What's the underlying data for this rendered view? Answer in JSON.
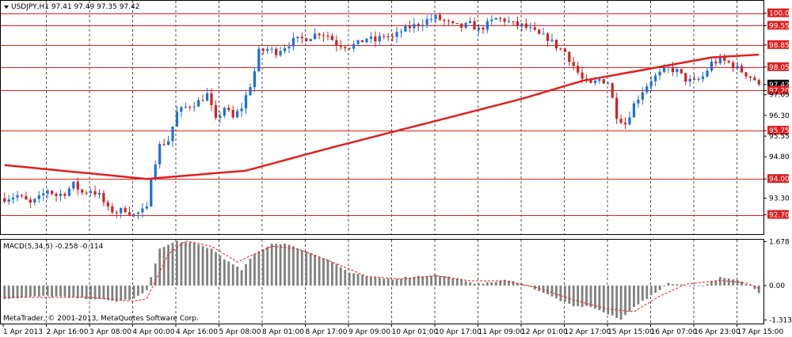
{
  "header": {
    "symbol_line": "USDJPY,H1  97.41 97.49 97.35 97.42"
  },
  "macd": {
    "label": "MACD(5,34,5) -0.258 -0.114",
    "ticks": [
      "1.678",
      "0.00",
      "-1.313"
    ]
  },
  "footer": {
    "copyright": "MetaTrader, © 2001-2013, MetaQuotes Software Corp."
  },
  "colors": {
    "up": "#1E6FD9",
    "down": "#D62020",
    "ma": "#E02020",
    "level": "#E02020",
    "macd_hist": "#808080",
    "signal": "#E02020"
  },
  "chart_data": [
    {
      "type": "candlestick",
      "title": "USDJPY,H1",
      "ylim": [
        92.0,
        100.45
      ],
      "y_ticks": [
        100.0,
        99.55,
        98.85,
        98.05,
        97.42,
        97.2,
        97.05,
        96.3,
        95.75,
        95.55,
        94.8,
        94.0,
        93.3,
        92.7
      ],
      "y_tick_labels": [
        "100.00",
        "99.55",
        "98.85",
        "98.05",
        "97.42",
        "97.20",
        "97.05",
        "96.30",
        "95.75",
        "95.55",
        "94.80",
        "94.00",
        "93.30",
        "92.70"
      ],
      "highlighted_levels": [
        100.0,
        99.55,
        98.85,
        98.05,
        97.2,
        95.75,
        94.0,
        92.7
      ],
      "current_price": 97.42,
      "x_labels": [
        "1 Apr 2013",
        "2 Apr 16:00",
        "3 Apr 08:00",
        "4 Apr 00:00",
        "4 Apr 16:00",
        "5 Apr 08:00",
        "8 Apr 01:00",
        "8 Apr 17:00",
        "9 Apr 09:00",
        "10 Apr 01:00",
        "10 Apr 17:00",
        "11 Apr 09:00",
        "12 Apr 01:00",
        "12 Apr 17:00",
        "15 Apr 15:00",
        "16 Apr 07:00",
        "16 Apr 23:00",
        "17 Apr 15:00"
      ],
      "grid": "dashed vertical",
      "close_path": [
        [
          0,
          93.3
        ],
        [
          3,
          93.4
        ],
        [
          6,
          93.1
        ],
        [
          8,
          93.3
        ],
        [
          10,
          93.6
        ],
        [
          12,
          93.4
        ],
        [
          14,
          93.5
        ],
        [
          16,
          93.8
        ],
        [
          18,
          93.5
        ],
        [
          20,
          93.6
        ],
        [
          22,
          93.4
        ],
        [
          24,
          92.9
        ],
        [
          26,
          92.8
        ],
        [
          28,
          92.9
        ],
        [
          30,
          92.7
        ],
        [
          33,
          92.9
        ],
        [
          34,
          94.1
        ],
        [
          36,
          95.2
        ],
        [
          38,
          95.4
        ],
        [
          40,
          96.4
        ],
        [
          42,
          96.6
        ],
        [
          45,
          96.8
        ],
        [
          47,
          97.05
        ],
        [
          49,
          96.1
        ],
        [
          51,
          96.6
        ],
        [
          53,
          96.2
        ],
        [
          55,
          96.6
        ],
        [
          57,
          97.4
        ],
        [
          58,
          97.9
        ],
        [
          59,
          98.6
        ],
        [
          61,
          98.7
        ],
        [
          63,
          98.6
        ],
        [
          65,
          98.8
        ],
        [
          67,
          99.0
        ],
        [
          70,
          99.1
        ],
        [
          73,
          99.3
        ],
        [
          75,
          99.2
        ],
        [
          77,
          98.9
        ],
        [
          80,
          98.8
        ],
        [
          82,
          98.9
        ],
        [
          84,
          99.1
        ],
        [
          86,
          99.0
        ],
        [
          88,
          99.2
        ],
        [
          90,
          99.1
        ],
        [
          92,
          99.35
        ],
        [
          94,
          99.5
        ],
        [
          96,
          99.6
        ],
        [
          98,
          99.75
        ],
        [
          100,
          99.85
        ],
        [
          102,
          99.7
        ],
        [
          104,
          99.55
        ],
        [
          106,
          99.5
        ],
        [
          108,
          99.6
        ],
        [
          110,
          99.4
        ],
        [
          112,
          99.6
        ],
        [
          114,
          99.8
        ],
        [
          116,
          99.75
        ],
        [
          118,
          99.6
        ],
        [
          120,
          99.55
        ],
        [
          122,
          99.4
        ],
        [
          124,
          99.2
        ],
        [
          126,
          99.1
        ],
        [
          128,
          98.8
        ],
        [
          130,
          98.6
        ],
        [
          132,
          98.1
        ],
        [
          134,
          97.6
        ],
        [
          136,
          97.4
        ],
        [
          138,
          97.6
        ],
        [
          140,
          97.5
        ],
        [
          142,
          96.3
        ],
        [
          144,
          96.0
        ],
        [
          146,
          96.7
        ],
        [
          148,
          97.2
        ],
        [
          150,
          97.6
        ],
        [
          152,
          97.8
        ],
        [
          154,
          98.0
        ],
        [
          156,
          97.9
        ],
        [
          158,
          97.6
        ],
        [
          160,
          97.5
        ],
        [
          162,
          97.7
        ],
        [
          164,
          98.2
        ],
        [
          166,
          98.3
        ],
        [
          168,
          98.2
        ],
        [
          170,
          98.0
        ],
        [
          172,
          97.8
        ],
        [
          174,
          97.6
        ],
        [
          175,
          97.42
        ]
      ],
      "series": [
        {
          "name": "",
          "type": "ma",
          "values": [
            [
              0,
              94.5
            ],
            [
              33,
              94.0
            ],
            [
              56,
              94.3
            ],
            [
              75,
              95.1
            ],
            [
              100,
              96.1
            ],
            [
              120,
              96.9
            ],
            [
              134,
              97.55
            ],
            [
              150,
              98.0
            ],
            [
              164,
              98.4
            ],
            [
              175,
              98.5
            ]
          ]
        }
      ]
    },
    {
      "type": "bar",
      "title": "MACD(5,34,5)",
      "ylim": [
        -1.45,
        1.75
      ],
      "y_tick_labels": [
        "1.678",
        "0.00",
        "-1.313"
      ],
      "macd_path": [
        [
          0,
          -0.5
        ],
        [
          10,
          -0.4
        ],
        [
          20,
          -0.5
        ],
        [
          26,
          -0.6
        ],
        [
          30,
          -0.5
        ],
        [
          33,
          -0.2
        ],
        [
          36,
          1.4
        ],
        [
          40,
          1.7
        ],
        [
          44,
          1.6
        ],
        [
          48,
          1.4
        ],
        [
          52,
          0.9
        ],
        [
          55,
          0.6
        ],
        [
          58,
          1.2
        ],
        [
          62,
          1.6
        ],
        [
          65,
          1.6
        ],
        [
          70,
          1.3
        ],
        [
          75,
          1.0
        ],
        [
          80,
          0.5
        ],
        [
          85,
          0.3
        ],
        [
          90,
          0.25
        ],
        [
          95,
          0.35
        ],
        [
          100,
          0.4
        ],
        [
          104,
          0.3
        ],
        [
          108,
          0.1
        ],
        [
          112,
          0.1
        ],
        [
          116,
          0.2
        ],
        [
          120,
          0.1
        ],
        [
          124,
          -0.2
        ],
        [
          128,
          -0.5
        ],
        [
          132,
          -0.8
        ],
        [
          136,
          -0.8
        ],
        [
          140,
          -1.1
        ],
        [
          143,
          -1.3
        ],
        [
          146,
          -0.8
        ],
        [
          150,
          -0.4
        ],
        [
          154,
          0.1
        ],
        [
          158,
          0.0
        ],
        [
          162,
          0.0
        ],
        [
          166,
          0.3
        ],
        [
          170,
          0.2
        ],
        [
          173,
          0.0
        ],
        [
          175,
          -0.258
        ]
      ],
      "signal_path": [
        [
          0,
          -0.45
        ],
        [
          20,
          -0.45
        ],
        [
          30,
          -0.6
        ],
        [
          33,
          -0.5
        ],
        [
          38,
          1.2
        ],
        [
          42,
          1.7
        ],
        [
          48,
          1.5
        ],
        [
          54,
          0.9
        ],
        [
          62,
          1.5
        ],
        [
          68,
          1.4
        ],
        [
          76,
          0.9
        ],
        [
          84,
          0.35
        ],
        [
          92,
          0.25
        ],
        [
          100,
          0.38
        ],
        [
          108,
          0.18
        ],
        [
          116,
          0.18
        ],
        [
          124,
          -0.1
        ],
        [
          132,
          -0.55
        ],
        [
          140,
          -0.9
        ],
        [
          146,
          -1.0
        ],
        [
          152,
          -0.4
        ],
        [
          158,
          0.05
        ],
        [
          166,
          0.2
        ],
        [
          172,
          0.1
        ],
        [
          175,
          -0.114
        ]
      ]
    }
  ]
}
